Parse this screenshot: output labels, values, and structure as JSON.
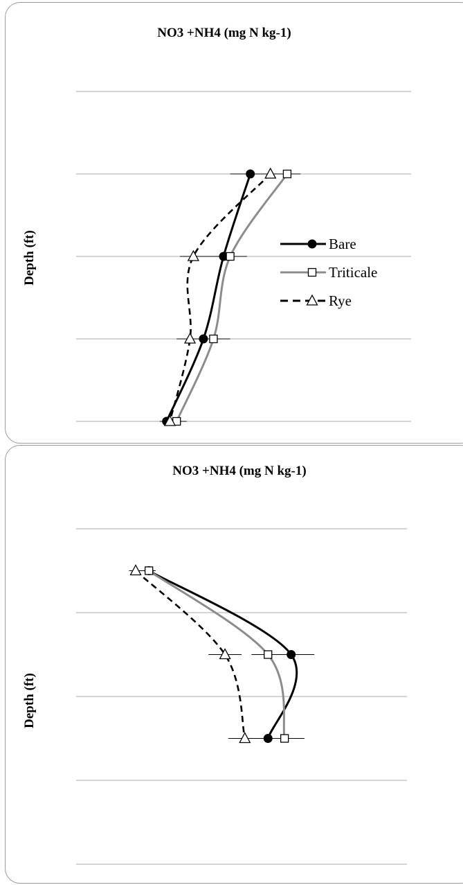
{
  "chart_data": [
    {
      "type": "line",
      "title": "NO3 +NH4 (mg N kg-1)",
      "xlabel": "",
      "ylabel": "Depth (ft)",
      "depth_levels": [
        1,
        2,
        3,
        4
      ],
      "ylim": [
        0,
        5
      ],
      "xlim": [
        0,
        100
      ],
      "grid": true,
      "legend": {
        "placement": "right",
        "entries": [
          "Bare",
          "Triticale",
          "Rye"
        ]
      },
      "series": [
        {
          "name": "Bare",
          "color": "#000000",
          "dash": "solid",
          "marker": "filled-circle",
          "x": [
            52,
            44,
            38,
            27
          ],
          "y": [
            1,
            2,
            3,
            4
          ],
          "err": [
            6,
            7,
            6,
            2
          ]
        },
        {
          "name": "Triticale",
          "color": "#8c8c8c",
          "dash": "solid",
          "marker": "open-square",
          "x": [
            63,
            46,
            41,
            30
          ],
          "y": [
            1,
            2,
            3,
            4
          ],
          "err": [
            4,
            5,
            5,
            3
          ]
        },
        {
          "name": "Rye",
          "color": "#000000",
          "dash": "dashed",
          "marker": "open-triangle",
          "x": [
            58,
            35,
            34,
            28
          ],
          "y": [
            1,
            2,
            3,
            4
          ],
          "err": [
            4,
            4,
            4,
            3
          ]
        }
      ]
    },
    {
      "type": "line",
      "title": "NO3 +NH4 (mg N kg-1)",
      "xlabel": "",
      "ylabel": "Depth (ft)",
      "depth_levels": [
        1,
        2,
        3,
        4
      ],
      "ylim": [
        0,
        5
      ],
      "xlim": [
        0,
        100
      ],
      "grid": true,
      "series": [
        {
          "name": "Bare",
          "color": "#000000",
          "dash": "solid",
          "marker": "filled-circle",
          "x": [
            22,
            65,
            58
          ],
          "y": [
            0.5,
            1.5,
            2.5
          ],
          "err": [
            2,
            7,
            5
          ]
        },
        {
          "name": "Triticale",
          "color": "#8c8c8c",
          "dash": "solid",
          "marker": "open-square",
          "x": [
            22,
            58,
            63
          ],
          "y": [
            0.5,
            1.5,
            2.5
          ],
          "err": [
            2,
            5,
            6
          ]
        },
        {
          "name": "Rye",
          "color": "#000000",
          "dash": "dashed",
          "marker": "open-triangle",
          "x": [
            18,
            45,
            51
          ],
          "y": [
            0.5,
            1.5,
            2.5
          ],
          "err": [
            2,
            5,
            5
          ]
        }
      ]
    }
  ]
}
